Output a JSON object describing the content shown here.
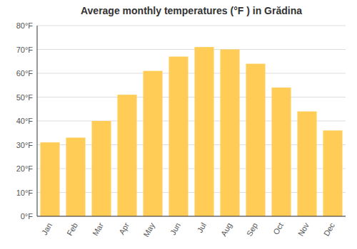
{
  "chart_data": {
    "type": "bar",
    "title": "Average monthly temperatures (°F ) in Grădina",
    "categories": [
      "Jan",
      "Feb",
      "Mar",
      "Apr",
      "May",
      "Jun",
      "Jul",
      "Aug",
      "Sep",
      "Oct",
      "Nov",
      "Dec"
    ],
    "values": [
      31,
      33,
      40,
      51,
      61,
      67,
      71,
      70,
      64,
      54,
      44,
      36
    ],
    "color": "#FFCC55",
    "ylim": [
      0,
      80
    ],
    "yticks": [
      {
        "value": 0,
        "label": "0°F"
      },
      {
        "value": 10,
        "label": "10°F"
      },
      {
        "value": 20,
        "label": "20°F"
      },
      {
        "value": 30,
        "label": "30°F"
      },
      {
        "value": 40,
        "label": "40°F"
      },
      {
        "value": 50,
        "label": "50°F"
      },
      {
        "value": 60,
        "label": "60°F"
      },
      {
        "value": 70,
        "label": "70°F"
      },
      {
        "value": 80,
        "label": "80°F"
      }
    ],
    "grid": true
  }
}
